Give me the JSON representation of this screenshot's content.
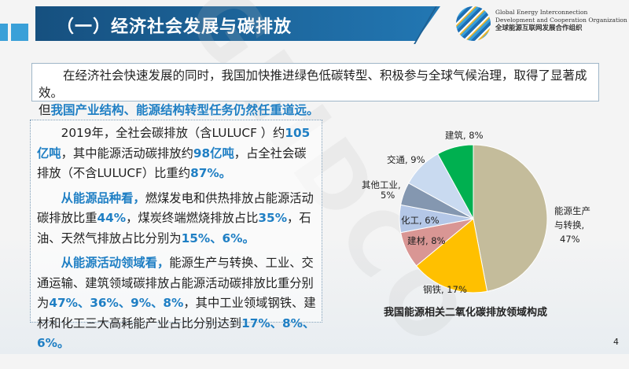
{
  "header": {
    "title": "（一）经济社会发展与碳排放",
    "org_en_1": "Global Energy Interconnection",
    "org_en_2": "Development and Cooperation Organization",
    "org_cn": "全球能源互联网发展合作组织"
  },
  "intro": {
    "line": "在经济社会快速发展的同时，我国加快推进绿色低碳转型、积极参与全球气候治理，取得了显著成效。",
    "prefix": "但",
    "highlight": "我国产业结构、能源结构转型任务仍然任重道远。"
  },
  "left": {
    "p1": [
      "2019年，全社会碳排放（含LULUCF ）约",
      "105亿吨",
      "，其中能源活动碳排放约",
      "98亿吨",
      "，占全社会碳排放（不含LULUCF）比重约",
      "87%。"
    ],
    "p2": [
      "从能源品种看，",
      "燃煤发电和供热排放占能源活动碳排放比重",
      "44%",
      "，煤炭终端燃烧排放占比",
      "35%",
      "，石油、天然气排放占比分别为",
      "15%、6%。"
    ],
    "p3": [
      "从能源活动领域看，",
      "能源生产与转换、工业、交通运输、建筑领域碳排放占能源活动碳排放比重分别为",
      "47%、36%、9%、8%",
      "，其中工业领域钢铁、建材和化工三大高耗能产业占比分别达到",
      "17%、8%、6%。"
    ]
  },
  "chart_data": {
    "type": "pie",
    "title": "我国能源相关二氧化碳排放领域构成",
    "slices": [
      {
        "label": "能源生产与转换",
        "value": 47,
        "text": "47%",
        "color": "#c4bc9b"
      },
      {
        "label": "钢铁",
        "value": 17,
        "text": "17%",
        "color": "#ffc000"
      },
      {
        "label": "建材",
        "value": 8,
        "text": "8%",
        "color": "#d99694"
      },
      {
        "label": "化工",
        "value": 6,
        "text": "6%",
        "color": "#b4c7e7"
      },
      {
        "label": "其他工业",
        "value": 5,
        "text": "5%",
        "color": "#8497b0"
      },
      {
        "label": "交通",
        "value": 9,
        "text": "9%",
        "color": "#c9daf0"
      },
      {
        "label": "建筑",
        "value": 8,
        "text": "8%",
        "color": "#00b050"
      }
    ]
  },
  "page_number": "4"
}
